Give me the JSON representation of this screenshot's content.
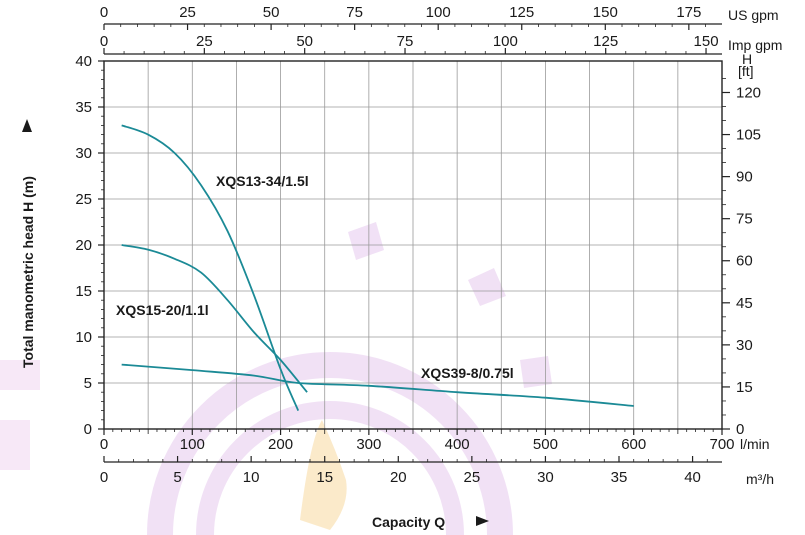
{
  "chart_data": {
    "type": "line",
    "xlabel": "Capacity Q",
    "ylabel": "Total manometric head H (m)",
    "xlim": [
      0,
      700
    ],
    "ylim": [
      0,
      40
    ],
    "grid": true,
    "axes": {
      "x_primary": {
        "unit": "l/min",
        "ticks": [
          "0",
          "100",
          "200",
          "300",
          "400",
          "500",
          "600",
          "700"
        ]
      },
      "x_m3h": {
        "unit": "m³/h",
        "ticks": [
          "0",
          "5",
          "10",
          "15",
          "20",
          "25",
          "30",
          "35",
          "40"
        ]
      },
      "x_us_gpm": {
        "unit": "US gpm",
        "ticks": [
          "0",
          "25",
          "50",
          "75",
          "100",
          "125",
          "150",
          "175"
        ]
      },
      "x_imp_gpm": {
        "unit": "Imp gpm",
        "ticks": [
          "0",
          "25",
          "50",
          "75",
          "100",
          "125",
          "150"
        ]
      },
      "y_primary": {
        "unit": "m",
        "ticks": [
          "0",
          "5",
          "10",
          "15",
          "20",
          "25",
          "30",
          "35",
          "40"
        ]
      },
      "y_ft": {
        "unit_top": "H",
        "unit_bottom": "[ft]",
        "ticks": [
          "0",
          "15",
          "30",
          "45",
          "60",
          "75",
          "90",
          "105",
          "120"
        ]
      }
    },
    "series": [
      {
        "name": "XQS13-34/1.5l",
        "color": "#1b8a96",
        "x": [
          20,
          50,
          80,
          110,
          140,
          170,
          200,
          220
        ],
        "y": [
          33,
          32,
          30,
          26.5,
          21.5,
          14.5,
          6.5,
          2
        ]
      },
      {
        "name": "XQS15-20/1.1l",
        "color": "#1b8a96",
        "x": [
          20,
          50,
          80,
          110,
          140,
          170,
          200,
          230
        ],
        "y": [
          20,
          19.5,
          18.5,
          17,
          14,
          10.5,
          7.5,
          4
        ]
      },
      {
        "name": "XQS39-8/0.75l",
        "color": "#1b8a96",
        "x": [
          20,
          100,
          170,
          220,
          300,
          400,
          500,
          600
        ],
        "y": [
          7,
          6.4,
          5.8,
          5,
          4.7,
          4,
          3.4,
          2.5
        ]
      }
    ],
    "annotations": [
      "XQS13-34/1.5l",
      "XQS15-20/1.1l",
      "XQS39-8/0.75l"
    ]
  }
}
